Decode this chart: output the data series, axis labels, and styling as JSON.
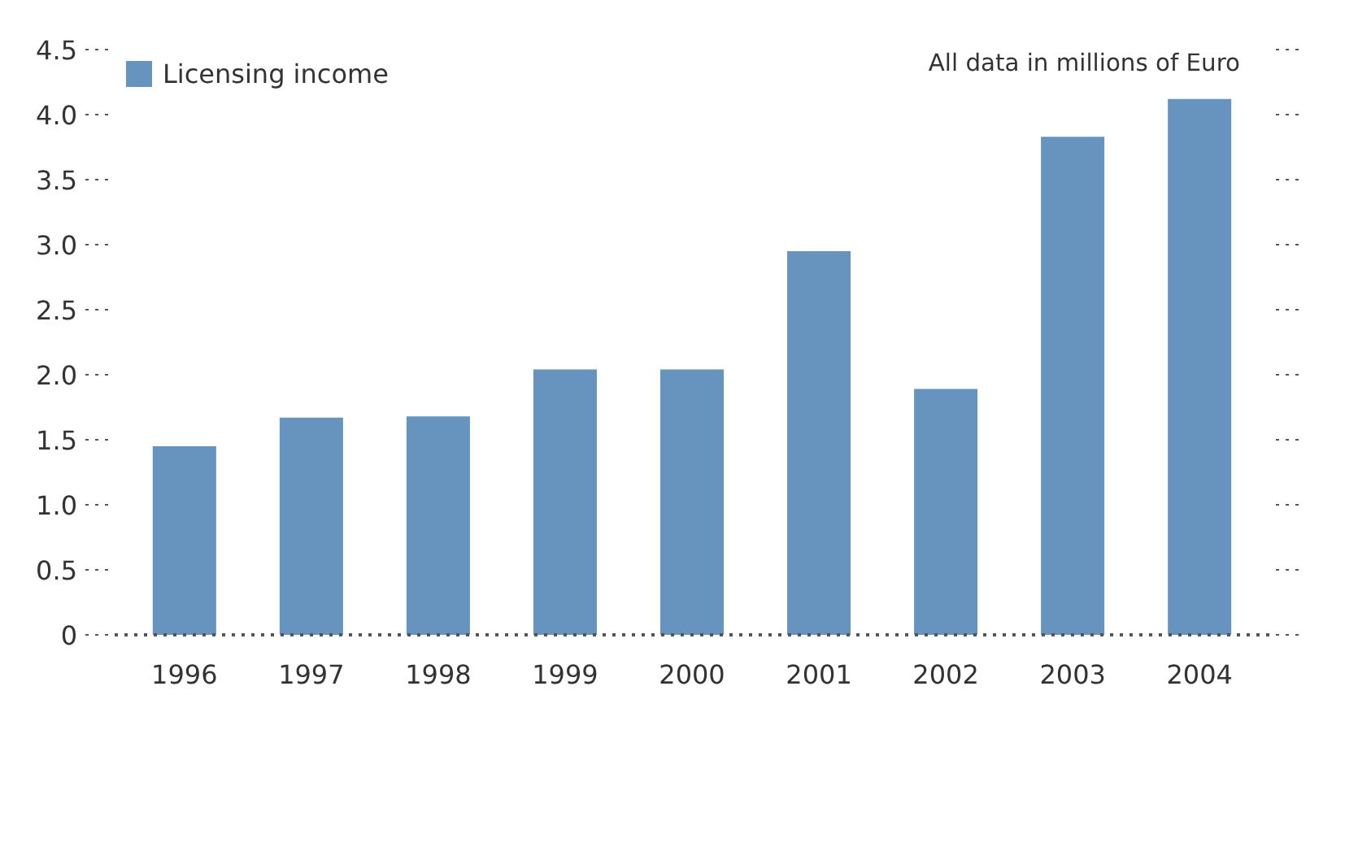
{
  "chart_data": {
    "type": "bar",
    "categories": [
      "1996",
      "1997",
      "1998",
      "1999",
      "2000",
      "2001",
      "2002",
      "2003",
      "2004"
    ],
    "series": [
      {
        "name": "Licensing income",
        "color": "#6694bf",
        "values": [
          1.45,
          1.67,
          1.68,
          2.04,
          2.04,
          2.95,
          1.89,
          3.83,
          4.12
        ]
      }
    ],
    "ylim": [
      0,
      4.5
    ],
    "yticks": [
      0,
      0.5,
      {
        "value": 1,
        "label": "1.0"
      },
      1.5,
      {
        "value": 2,
        "label": "2.0"
      },
      2.5,
      {
        "value": 3,
        "label": "3.0"
      },
      3.5,
      {
        "value": 4,
        "label": "4.0"
      },
      4.5
    ],
    "annotations": [
      "All data in millions of Euro"
    ],
    "grid": false,
    "legend": "top left"
  }
}
